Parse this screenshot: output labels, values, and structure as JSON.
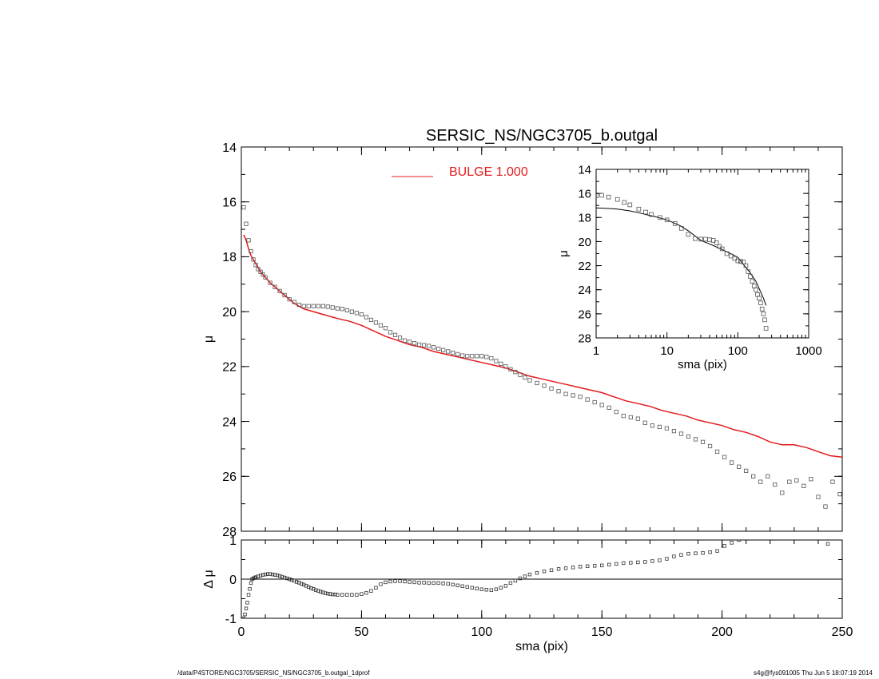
{
  "footer": {
    "left": "/data/P4STORE/NGC3705/SERSIC_NS/NGC3705_b.outgal_1dprof",
    "right": "s4g@fys091005  Thu Jun  5 18:07:19 2014"
  },
  "colors": {
    "model": "#e31a1c",
    "data": "#555555",
    "axes": "#000000"
  },
  "chart_data": [
    {
      "id": "main",
      "type": "scatter",
      "title": "SERSIC_NS/NGC3705_b.outgal",
      "xlabel": "",
      "ylabel": "μ",
      "xlim": [
        0,
        250
      ],
      "ylim": [
        14,
        28
      ],
      "y_reversed": true,
      "yticks": [
        14,
        16,
        18,
        20,
        22,
        24,
        26,
        28
      ],
      "xticks": [
        0,
        50,
        100,
        150,
        200,
        250
      ],
      "legend": {
        "label": "BULGE  1.000",
        "placement": "top-center",
        "color": "#e31a1c"
      },
      "series": [
        {
          "name": "BULGE  1.000",
          "kind": "line",
          "color": "#e31a1c",
          "x": [
            1,
            2,
            3,
            4,
            5,
            6,
            7,
            8,
            9,
            10,
            12,
            14,
            16,
            18,
            20,
            22,
            24,
            26,
            28,
            30,
            32,
            34,
            36,
            38,
            40,
            45,
            50,
            55,
            60,
            65,
            70,
            75,
            80,
            85,
            90,
            95,
            100,
            105,
            110,
            115,
            120,
            125,
            130,
            135,
            140,
            145,
            150,
            155,
            160,
            165,
            170,
            175,
            180,
            185,
            190,
            195,
            200,
            205,
            210,
            215,
            220,
            225,
            230,
            235,
            240,
            245,
            250
          ],
          "y": [
            17.2,
            17.4,
            17.7,
            17.95,
            18.1,
            18.25,
            18.4,
            18.55,
            18.65,
            18.75,
            18.95,
            19.1,
            19.25,
            19.4,
            19.55,
            19.7,
            19.8,
            19.9,
            19.95,
            20.0,
            20.05,
            20.1,
            20.15,
            20.2,
            20.25,
            20.35,
            20.5,
            20.7,
            20.9,
            21.05,
            21.2,
            21.3,
            21.45,
            21.55,
            21.65,
            21.75,
            21.85,
            21.95,
            22.05,
            22.2,
            22.35,
            22.45,
            22.55,
            22.65,
            22.75,
            22.85,
            22.95,
            23.1,
            23.25,
            23.35,
            23.45,
            23.6,
            23.7,
            23.8,
            23.95,
            24.05,
            24.15,
            24.3,
            24.4,
            24.55,
            24.75,
            24.85,
            24.85,
            24.95,
            25.1,
            25.25,
            25.3
          ]
        },
        {
          "name": "",
          "kind": "markers",
          "color": "#555555",
          "x": [
            1,
            2,
            3,
            4,
            5,
            6,
            7,
            8,
            9,
            10,
            12,
            14,
            16,
            18,
            20,
            22,
            24,
            26,
            28,
            30,
            32,
            34,
            36,
            38,
            40,
            42,
            44,
            46,
            48,
            50,
            52,
            54,
            56,
            58,
            60,
            62,
            64,
            66,
            68,
            70,
            72,
            74,
            76,
            78,
            80,
            82,
            84,
            86,
            88,
            90,
            92,
            94,
            96,
            98,
            100,
            102,
            104,
            106,
            108,
            110,
            112,
            114,
            116,
            118,
            120,
            123,
            126,
            129,
            132,
            135,
            138,
            141,
            144,
            147,
            150,
            153,
            156,
            159,
            162,
            165,
            168,
            171,
            174,
            177,
            180,
            183,
            186,
            189,
            192,
            195,
            198,
            201,
            204,
            207,
            210,
            213,
            216,
            219,
            222,
            225,
            228,
            231,
            234,
            237,
            240,
            243,
            246,
            249
          ],
          "y": [
            16.2,
            16.8,
            17.4,
            17.8,
            18.1,
            18.3,
            18.45,
            18.55,
            18.65,
            18.75,
            18.95,
            19.1,
            19.25,
            19.4,
            19.55,
            19.65,
            19.75,
            19.8,
            19.8,
            19.8,
            19.8,
            19.8,
            19.82,
            19.85,
            19.88,
            19.9,
            19.95,
            20.0,
            20.05,
            20.1,
            20.2,
            20.3,
            20.4,
            20.5,
            20.6,
            20.75,
            20.85,
            20.95,
            21.05,
            21.1,
            21.15,
            21.2,
            21.22,
            21.25,
            21.3,
            21.35,
            21.4,
            21.45,
            21.5,
            21.55,
            21.6,
            21.62,
            21.62,
            21.62,
            21.62,
            21.65,
            21.7,
            21.8,
            21.9,
            22.0,
            22.1,
            22.2,
            22.3,
            22.4,
            22.5,
            22.6,
            22.7,
            22.8,
            22.9,
            23.0,
            23.05,
            23.1,
            23.2,
            23.3,
            23.4,
            23.5,
            23.65,
            23.8,
            23.85,
            23.9,
            24.05,
            24.15,
            24.2,
            24.25,
            24.35,
            24.45,
            24.55,
            24.65,
            24.75,
            24.9,
            25.1,
            25.3,
            25.5,
            25.65,
            25.8,
            26.0,
            26.2,
            26.0,
            26.3,
            26.6,
            26.2,
            26.15,
            26.35,
            26.1,
            26.75,
            27.1,
            26.2,
            26.65
          ]
        }
      ]
    },
    {
      "id": "inset",
      "type": "scatter",
      "title": "",
      "xlabel": "sma (pix)",
      "ylabel": "μ",
      "x_scale": "log",
      "xlim": [
        1,
        1000
      ],
      "ylim": [
        14,
        28
      ],
      "y_reversed": true,
      "yticks": [
        14,
        16,
        18,
        20,
        22,
        24,
        26,
        28
      ],
      "xticks": [
        1,
        10,
        100,
        1000
      ],
      "series": [
        {
          "name": "",
          "kind": "line",
          "color": "#000000",
          "x": [
            1,
            1.5,
            2,
            3,
            4,
            5,
            7,
            10,
            15,
            20,
            30,
            40,
            50,
            70,
            100,
            120,
            150,
            180,
            200,
            230,
            250
          ],
          "y": [
            17.2,
            17.25,
            17.3,
            17.45,
            17.6,
            17.75,
            17.95,
            18.2,
            18.65,
            19.1,
            19.9,
            20.2,
            20.45,
            20.85,
            21.3,
            21.9,
            22.6,
            23.3,
            23.9,
            24.7,
            25.3
          ]
        },
        {
          "name": "",
          "kind": "markers",
          "color": "#555555",
          "x": [
            1,
            1.2,
            1.5,
            2,
            2.5,
            3,
            4,
            5,
            6,
            8,
            10,
            13,
            16,
            20,
            25,
            30,
            35,
            40,
            45,
            50,
            55,
            60,
            70,
            80,
            90,
            100,
            110,
            120,
            130,
            140,
            150,
            160,
            170,
            180,
            190,
            200,
            210,
            220,
            230,
            240,
            250
          ],
          "y": [
            16.2,
            16.15,
            16.3,
            16.5,
            16.75,
            16.95,
            17.3,
            17.55,
            17.75,
            18.0,
            18.2,
            18.5,
            18.9,
            19.4,
            19.75,
            19.8,
            19.8,
            19.85,
            19.9,
            20.1,
            20.4,
            20.6,
            21.0,
            21.2,
            21.4,
            21.6,
            21.65,
            21.7,
            22.0,
            22.5,
            22.9,
            23.3,
            23.7,
            24.0,
            24.4,
            24.7,
            25.1,
            25.6,
            26.0,
            26.5,
            27.2
          ]
        }
      ]
    },
    {
      "id": "residual",
      "type": "scatter",
      "title": "",
      "xlabel": "sma (pix)",
      "ylabel": "Δ μ",
      "xlim": [
        0,
        250
      ],
      "ylim": [
        -1,
        1
      ],
      "yticks": [
        -1,
        0,
        1
      ],
      "xticks": [
        0,
        50,
        100,
        150,
        200,
        250
      ],
      "zero_line": true,
      "series": [
        {
          "name": "",
          "kind": "markers",
          "color": "#333333",
          "x": [
            1,
            1.5,
            2,
            2.5,
            3,
            3.5,
            4,
            4.5,
            5,
            5.5,
            6,
            7,
            8,
            9,
            10,
            11,
            12,
            13,
            14,
            15,
            16,
            17,
            18,
            19,
            20,
            21,
            22,
            23,
            24,
            25,
            26,
            27,
            28,
            29,
            30,
            31,
            32,
            33,
            34,
            35,
            36,
            37,
            38,
            39,
            40,
            42,
            44,
            46,
            48,
            50,
            52,
            54,
            56,
            58,
            60,
            62,
            64,
            66,
            68,
            70,
            72,
            74,
            76,
            78,
            80,
            82,
            84,
            86,
            88,
            90,
            92,
            94,
            96,
            98,
            100,
            102,
            104,
            106,
            108,
            110,
            112,
            114,
            116,
            118,
            120,
            123,
            126,
            129,
            132,
            135,
            138,
            141,
            144,
            147,
            150,
            153,
            156,
            159,
            162,
            165,
            168,
            171,
            174,
            177,
            180,
            183,
            186,
            189,
            192,
            195,
            198,
            201,
            204,
            207,
            210,
            244
          ],
          "y": [
            -1.0,
            -0.9,
            -0.75,
            -0.6,
            -0.4,
            -0.25,
            -0.1,
            0.0,
            0.02,
            0.03,
            0.05,
            0.07,
            0.09,
            0.11,
            0.12,
            0.13,
            0.13,
            0.12,
            0.11,
            0.1,
            0.08,
            0.06,
            0.04,
            0.02,
            0.0,
            -0.02,
            -0.04,
            -0.07,
            -0.09,
            -0.12,
            -0.14,
            -0.17,
            -0.2,
            -0.23,
            -0.25,
            -0.28,
            -0.3,
            -0.32,
            -0.34,
            -0.36,
            -0.37,
            -0.38,
            -0.39,
            -0.39,
            -0.4,
            -0.4,
            -0.4,
            -0.4,
            -0.4,
            -0.38,
            -0.35,
            -0.3,
            -0.22,
            -0.13,
            -0.08,
            -0.06,
            -0.05,
            -0.05,
            -0.06,
            -0.07,
            -0.08,
            -0.09,
            -0.09,
            -0.1,
            -0.1,
            -0.1,
            -0.11,
            -0.12,
            -0.14,
            -0.16,
            -0.18,
            -0.2,
            -0.22,
            -0.24,
            -0.26,
            -0.27,
            -0.28,
            -0.26,
            -0.22,
            -0.17,
            -0.1,
            -0.04,
            0.02,
            0.07,
            0.12,
            0.16,
            0.2,
            0.23,
            0.26,
            0.28,
            0.3,
            0.32,
            0.33,
            0.34,
            0.35,
            0.37,
            0.39,
            0.41,
            0.42,
            0.43,
            0.44,
            0.46,
            0.48,
            0.52,
            0.58,
            0.62,
            0.65,
            0.66,
            0.67,
            0.69,
            0.72,
            0.85,
            0.93,
            1.0,
            1.03,
            0.9
          ]
        }
      ]
    }
  ]
}
